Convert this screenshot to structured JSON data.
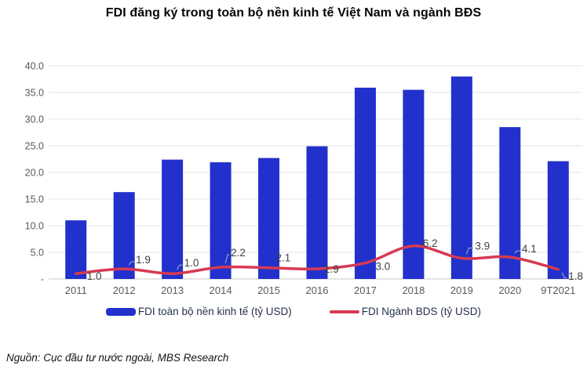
{
  "title": "FDI đăng ký trong toàn bộ nền kinh tế Việt Nam và ngành BĐS",
  "source": "Nguồn: Cục đầu tư nước ngoài, MBS Research",
  "legend": [
    {
      "label": "FDI toàn bộ nền kinh tế (tỷ USD)",
      "type": "bar",
      "color": "#2231CB"
    },
    {
      "label": "FDI Ngành BDS (tỷ USD)",
      "type": "line",
      "color": "#D63A52"
    }
  ],
  "colors": {
    "bar": "#2231CB",
    "line": "#D63A52",
    "grid": "#E4E4E7",
    "baseline": "#C9C9CE",
    "axis_text": "#595959",
    "data_label_text": "#3F3F3F",
    "callout": "#A8B0BC",
    "legend_text": "#26304F"
  },
  "chart_data": {
    "type": "bar",
    "subtype": "combo-bar-line",
    "title": "FDI đăng ký trong toàn bộ nền kinh tế Việt Nam và ngành BĐS",
    "categories": [
      "2011",
      "2012",
      "2013",
      "2014",
      "2015",
      "2016",
      "2017",
      "2018",
      "2019",
      "2020",
      "9T2021"
    ],
    "series": [
      {
        "name": "FDI toàn bộ nền kinh tế (tỷ USD)",
        "type": "bar",
        "color": "#2231CB",
        "values": [
          11.0,
          16.3,
          22.4,
          21.9,
          22.7,
          24.9,
          35.9,
          35.5,
          38.0,
          28.5,
          22.1
        ]
      },
      {
        "name": "FDI Ngành BDS (tỷ USD)",
        "type": "line",
        "color": "#D63A52",
        "smooth": true,
        "values": [
          1.0,
          1.9,
          1.0,
          2.2,
          2.1,
          1.9,
          3.0,
          6.2,
          3.9,
          4.1,
          1.8
        ],
        "data_labels": [
          "1.0",
          "1.9",
          "1.0",
          "2.2",
          "2.1",
          "1.9",
          "3.0",
          "6.2",
          "3.9",
          "4.1",
          "1.8"
        ]
      }
    ],
    "xlabel": "",
    "ylabel": "",
    "y_axis": {
      "min": 0,
      "max": 40,
      "step": 5,
      "tick_labels": [
        "-",
        "5.0",
        "10.0",
        "15.0",
        "20.0",
        "25.0",
        "30.0",
        "35.0",
        "40.0"
      ]
    },
    "grid": true,
    "legend_position": "bottom"
  }
}
